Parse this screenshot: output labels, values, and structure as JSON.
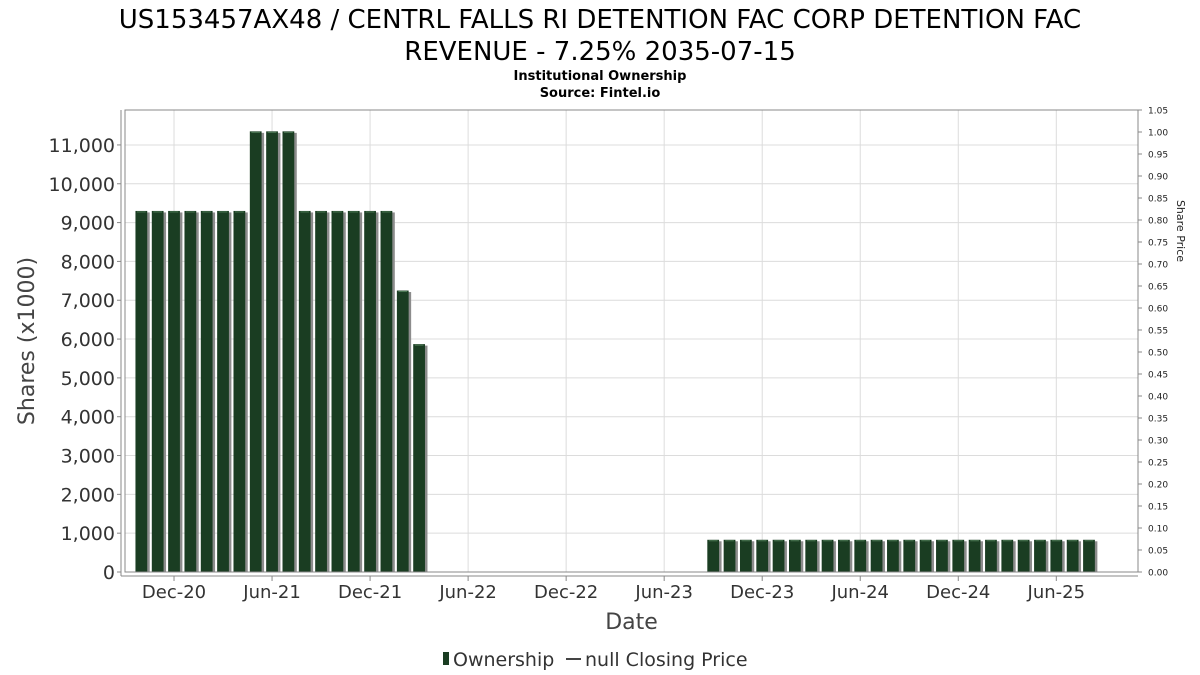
{
  "chart_data": {
    "type": "bar",
    "title_lines": [
      "US153457AX48 / CENTRL FALLS RI DETENTION FAC CORP DETENTION FAC",
      "REVENUE - 7.25% 2035-07-15"
    ],
    "subtitle_lines": [
      "Institutional Ownership",
      "Source: Fintel.io"
    ],
    "xlabel": "Date",
    "ylabel": "Shares (x1000)",
    "y2label": "Share Price",
    "ylim": [
      0,
      11900
    ],
    "y2lim": [
      0,
      1.05
    ],
    "y_ticks": [
      0,
      1000,
      2000,
      3000,
      4000,
      5000,
      6000,
      7000,
      8000,
      9000,
      10000,
      11000
    ],
    "y_tick_labels": [
      "0",
      "1,000",
      "2,000",
      "3,000",
      "4,000",
      "5,000",
      "6,000",
      "7,000",
      "8,000",
      "9,000",
      "10,000",
      "11,000"
    ],
    "y2_ticks": [
      0,
      0.05,
      0.1,
      0.15,
      0.2,
      0.25,
      0.3,
      0.35,
      0.4,
      0.45,
      0.5,
      0.55,
      0.6,
      0.65,
      0.7,
      0.75,
      0.8,
      0.85,
      0.9,
      0.95,
      1.0,
      1.05
    ],
    "y2_tick_labels": [
      "0.00",
      "0.05",
      "0.10",
      "0.15",
      "0.20",
      "0.25",
      "0.30",
      "0.35",
      "0.40",
      "0.45",
      "0.50",
      "0.55",
      "0.60",
      "0.65",
      "0.70",
      "0.75",
      "0.80",
      "0.85",
      "0.90",
      "0.95",
      "1.00",
      "1.05"
    ],
    "x_ticks": [
      "2020-12",
      "2021-06",
      "2021-12",
      "2022-06",
      "2022-12",
      "2023-06",
      "2023-12",
      "2024-06",
      "2024-12",
      "2025-06"
    ],
    "x_tick_labels": [
      "Dec-20",
      "Jun-21",
      "Dec-21",
      "Jun-22",
      "Dec-22",
      "Jun-23",
      "Dec-23",
      "Jun-24",
      "Dec-24",
      "Jun-25"
    ],
    "xlim": [
      "2020-09",
      "2025-11"
    ],
    "grid": true,
    "legend_position": "bottom-center",
    "series": [
      {
        "name": "Ownership",
        "color": "#1a3d22",
        "points": [
          {
            "x": "2020-10",
            "value": 9300
          },
          {
            "x": "2020-11",
            "value": 9300
          },
          {
            "x": "2020-12",
            "value": 9300
          },
          {
            "x": "2021-01",
            "value": 9300
          },
          {
            "x": "2021-02",
            "value": 9300
          },
          {
            "x": "2021-03",
            "value": 9300
          },
          {
            "x": "2021-04",
            "value": 9300
          },
          {
            "x": "2021-05",
            "value": 11350
          },
          {
            "x": "2021-06",
            "value": 11350
          },
          {
            "x": "2021-07",
            "value": 11350
          },
          {
            "x": "2021-08",
            "value": 9300
          },
          {
            "x": "2021-09",
            "value": 9300
          },
          {
            "x": "2021-10",
            "value": 9300
          },
          {
            "x": "2021-11",
            "value": 9300
          },
          {
            "x": "2021-12",
            "value": 9300
          },
          {
            "x": "2022-01",
            "value": 9300
          },
          {
            "x": "2022-02",
            "value": 7250
          },
          {
            "x": "2022-03",
            "value": 5870
          },
          {
            "x": "2023-09",
            "value": 830
          },
          {
            "x": "2023-10",
            "value": 830
          },
          {
            "x": "2023-11",
            "value": 830
          },
          {
            "x": "2023-12",
            "value": 830
          },
          {
            "x": "2024-01",
            "value": 830
          },
          {
            "x": "2024-02",
            "value": 830
          },
          {
            "x": "2024-03",
            "value": 830
          },
          {
            "x": "2024-04",
            "value": 830
          },
          {
            "x": "2024-05",
            "value": 830
          },
          {
            "x": "2024-06",
            "value": 830
          },
          {
            "x": "2024-07",
            "value": 830
          },
          {
            "x": "2024-08",
            "value": 830
          },
          {
            "x": "2024-09",
            "value": 830
          },
          {
            "x": "2024-10",
            "value": 830
          },
          {
            "x": "2024-11",
            "value": 830
          },
          {
            "x": "2024-12",
            "value": 830
          },
          {
            "x": "2025-01",
            "value": 830
          },
          {
            "x": "2025-02",
            "value": 830
          },
          {
            "x": "2025-03",
            "value": 830
          },
          {
            "x": "2025-04",
            "value": 830
          },
          {
            "x": "2025-05",
            "value": 830
          },
          {
            "x": "2025-06",
            "value": 830
          },
          {
            "x": "2025-07",
            "value": 830
          },
          {
            "x": "2025-08",
            "value": 830
          }
        ]
      },
      {
        "name": "null Closing Price",
        "color": "#444444",
        "points": []
      }
    ],
    "legend": [
      {
        "label": "Ownership",
        "marker": "bar",
        "color": "#1a3d22"
      },
      {
        "label": "null Closing Price",
        "marker": "line",
        "color": "#444444"
      }
    ]
  }
}
